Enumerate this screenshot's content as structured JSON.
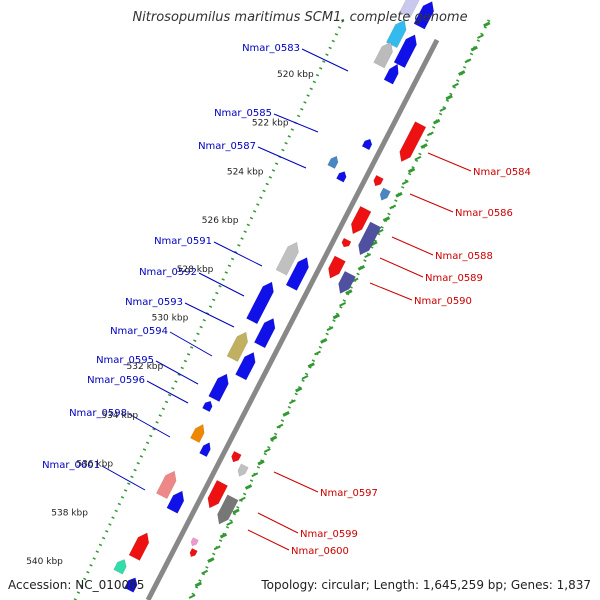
{
  "title": "Nitrosopumilus maritimus SCM1, complete genome",
  "footer": {
    "accession": "Accession: NC_010085",
    "topology": "Topology: circular; Length: 1,645,259 bp; Genes: 1,837"
  },
  "colors": {
    "forward_label": "#0000bb",
    "reverse_label": "#cc0000",
    "backbone": "#888888",
    "ticks": "#339933"
  },
  "scale": {
    "unit": "kbp",
    "ticks": [
      "520 kbp",
      "522 kbp",
      "524 kbp",
      "526 kbp",
      "528 kbp",
      "530 kbp",
      "532 kbp",
      "534 kbp",
      "536 kbp",
      "538 kbp",
      "540 kbp"
    ]
  },
  "forward_genes": [
    {
      "label": "Nmar_0583",
      "center_kbp": 519.7
    },
    {
      "label": "Nmar_0585",
      "center_kbp": 522.8
    },
    {
      "label": "Nmar_0587",
      "center_kbp": 523.8
    },
    {
      "label": "Nmar_0591",
      "center_kbp": 527.9
    },
    {
      "label": "Nmar_0592",
      "center_kbp": 529.2
    },
    {
      "label": "Nmar_0593",
      "center_kbp": 530.5
    },
    {
      "label": "Nmar_0594",
      "center_kbp": 531.7
    },
    {
      "label": "Nmar_0595",
      "center_kbp": 532.6
    },
    {
      "label": "Nmar_0596",
      "center_kbp": 533.3
    },
    {
      "label": "Nmar_0598",
      "center_kbp": 535.0
    },
    {
      "label": "Nmar_0601",
      "center_kbp": 537.6
    }
  ],
  "reverse_genes": [
    {
      "label": "Nmar_0584",
      "center_kbp": 522.3
    },
    {
      "label": "Nmar_0586",
      "center_kbp": 523.8
    },
    {
      "label": "Nmar_0588",
      "center_kbp": 525.6
    },
    {
      "label": "Nmar_0589",
      "center_kbp": 526.4
    },
    {
      "label": "Nmar_0590",
      "center_kbp": 527.0
    },
    {
      "label": "Nmar_0597",
      "center_kbp": 534.2
    },
    {
      "label": "Nmar_0599",
      "center_kbp": 536.3
    },
    {
      "label": "Nmar_0600",
      "center_kbp": 536.8
    }
  ]
}
